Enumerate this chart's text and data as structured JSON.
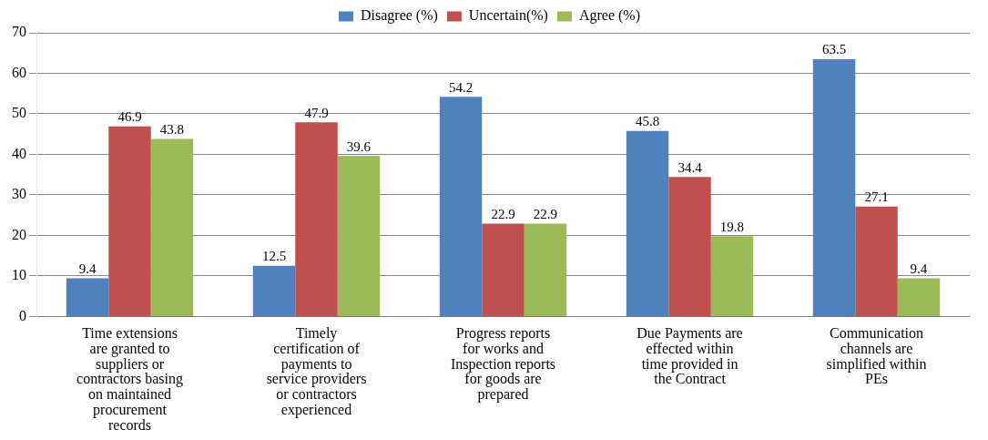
{
  "chart_data": {
    "type": "bar",
    "categories": [
      "Time extensions are granted to suppliers or contractors basing on maintained procurement records",
      "Timely certification of payments to service providers or contractors experienced",
      "Progress reports for works and Inspection reports for goods are prepared",
      "Due Payments are effected within time provided in the Contract",
      "Communication channels are simplified within PEs"
    ],
    "series": [
      {
        "name": "Disagree (%)",
        "color": "#4f81bd",
        "values": [
          9.4,
          12.5,
          54.2,
          45.8,
          63.5
        ]
      },
      {
        "name": "Uncertain(%)",
        "color": "#c0504d",
        "values": [
          46.9,
          47.9,
          22.9,
          34.4,
          27.1
        ]
      },
      {
        "name": "Agree (%)",
        "color": "#9bbb59",
        "values": [
          43.8,
          39.6,
          22.9,
          19.8,
          9.4
        ]
      }
    ],
    "ylim": [
      0,
      70
    ],
    "yticks": [
      0,
      10,
      20,
      30,
      40,
      50,
      60,
      70
    ],
    "grid": "y",
    "legend": "top",
    "data_labels": true
  }
}
